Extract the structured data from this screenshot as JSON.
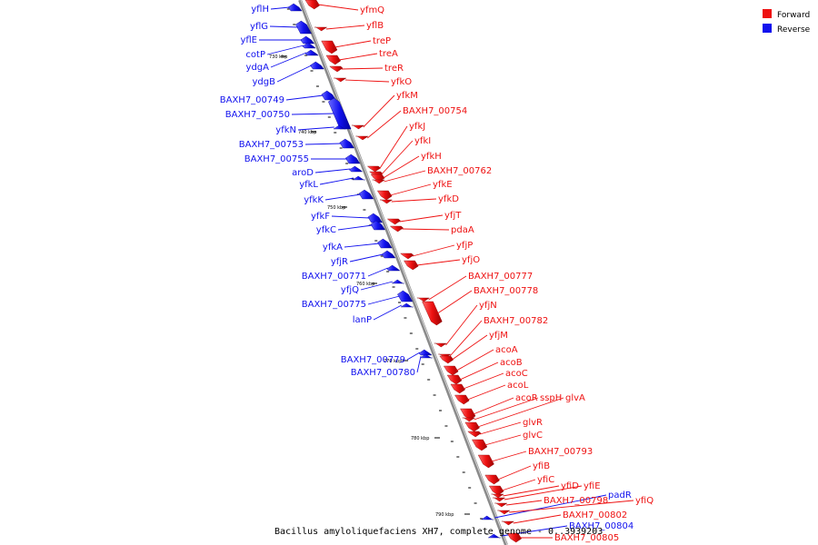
{
  "colors": {
    "forward": "#ee1111",
    "reverse": "#1111ee",
    "axis": "#999999",
    "text": "#000000"
  },
  "legend": {
    "forward": "Forward",
    "reverse": "Reverse"
  },
  "caption": "Bacillus amyloliquefaciens XH7, complete genome - 0..3939203",
  "ticks": [
    "730 kbp",
    "740 kbp",
    "750 kbp",
    "760 kbp",
    "770 kbp",
    "780 kbp",
    "790 kbp"
  ],
  "genes_reverse": [
    "yflH",
    "yflG",
    "yflE",
    "cotP",
    "ydgA",
    "ydgB",
    "BAXH7_00749",
    "BAXH7_00750",
    "yfkN",
    "BAXH7_00753",
    "BAXH7_00755",
    "aroD",
    "yfkL",
    "yfkK",
    "yfkF",
    "yfkC",
    "yfkA",
    "yfjR",
    "BAXH7_00771",
    "yfjQ",
    "BAXH7_00775",
    "lanP",
    "BAXH7_00779",
    "BAXH7_00780",
    "padR",
    "BAXH7_00804"
  ],
  "genes_forward": [
    "yfmQ",
    "yflB",
    "treP",
    "treA",
    "treR",
    "yfkO",
    "yfkM",
    "BAXH7_00754",
    "yfkJ",
    "yfkI",
    "yfkH",
    "BAXH7_00762",
    "yfkE",
    "yfkD",
    "yfjT",
    "pdaA",
    "yfjP",
    "yfjO",
    "BAXH7_00777",
    "BAXH7_00778",
    "yfjN",
    "BAXH7_00782",
    "yfjM",
    "acoA",
    "acoB",
    "acoC",
    "acoL",
    "acoR",
    "sspH",
    "glvA",
    "glvR",
    "glvC",
    "BAXH7_00793",
    "yfiB",
    "yfiC",
    "yfiD",
    "yfiE",
    "BAXH7_00798",
    "yfiQ",
    "BAXH7_00802",
    "BAXH7_00805"
  ]
}
